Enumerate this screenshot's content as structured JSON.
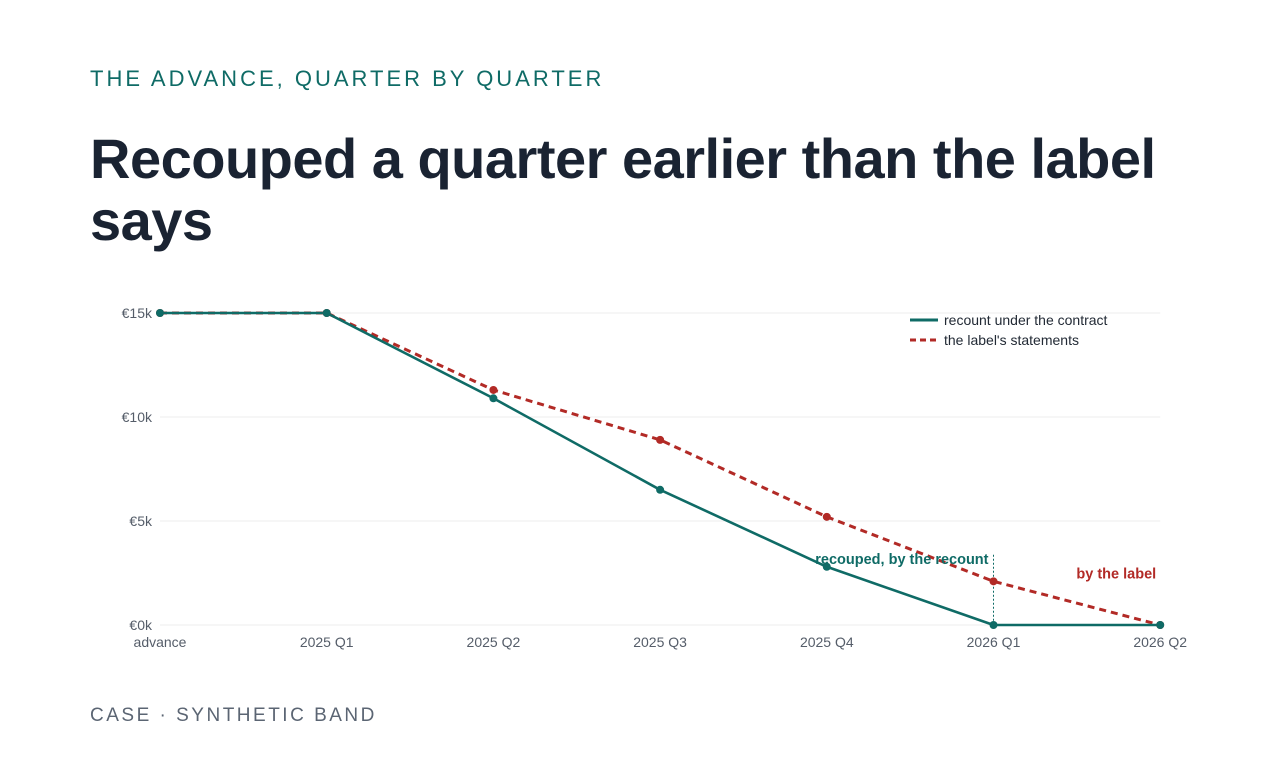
{
  "header": {
    "kicker": "THE ADVANCE, QUARTER BY QUARTER",
    "title": "Recouped a quarter earlier than the label says"
  },
  "footer": {
    "text": "CASE · SYNTHETIC BAND"
  },
  "colors": {
    "recount": "#0f6b66",
    "label": "#b22a26",
    "grid": "#ececec",
    "tick": "#555d69"
  },
  "chart_data": {
    "type": "line",
    "categories": [
      "advance",
      "2025 Q1",
      "2025 Q2",
      "2025 Q3",
      "2025 Q4",
      "2026 Q1",
      "2026 Q2"
    ],
    "series": [
      {
        "name": "recount under the contract",
        "style": "solid",
        "color": "#0f6b66",
        "values": [
          15000,
          15000,
          10900,
          6500,
          2800,
          0,
          0
        ]
      },
      {
        "name": "the label's statements",
        "style": "dashed",
        "color": "#b22a26",
        "values": [
          15000,
          15000,
          11300,
          8900,
          5200,
          2100,
          0
        ]
      }
    ],
    "ylim": [
      0,
      15000
    ],
    "yticks": [
      {
        "value": 0,
        "label": "€0k"
      },
      {
        "value": 5000,
        "label": "€5k"
      },
      {
        "value": 10000,
        "label": "€10k"
      },
      {
        "value": 15000,
        "label": "€15k"
      }
    ],
    "grid": true,
    "legend": "top-right",
    "annotations": [
      {
        "text": "recouped, by the recount",
        "category": "2026 Q1",
        "color": "#0f6b66"
      },
      {
        "text": "by the label",
        "category": "2026 Q2",
        "color": "#b22a26"
      }
    ]
  }
}
